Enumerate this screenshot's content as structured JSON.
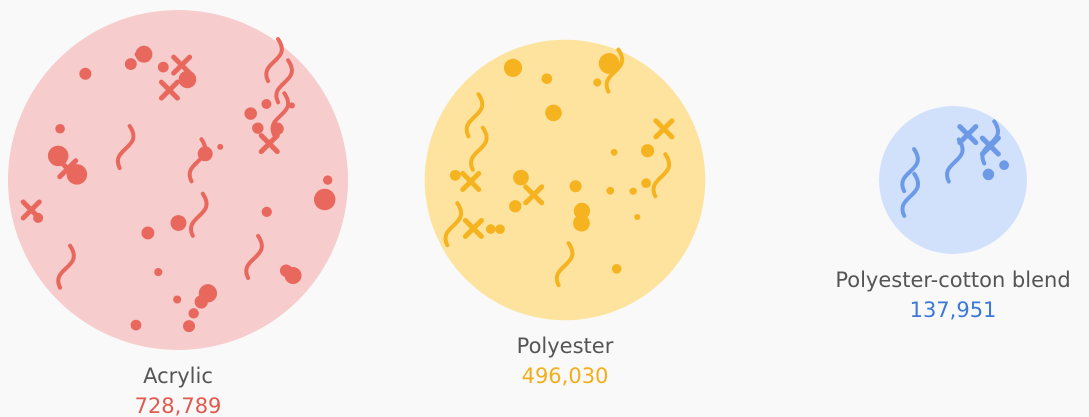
{
  "chart_data": {
    "type": "bubble",
    "categories": [
      "Acrylic",
      "Polyester",
      "Polyester-cotton blend"
    ],
    "values": [
      728789,
      496030,
      137951
    ],
    "value_labels": [
      "728,789",
      "496,030",
      "137,951"
    ],
    "colors": [
      "#e8685e",
      "#f6b320",
      "#6c9ae6"
    ]
  }
}
